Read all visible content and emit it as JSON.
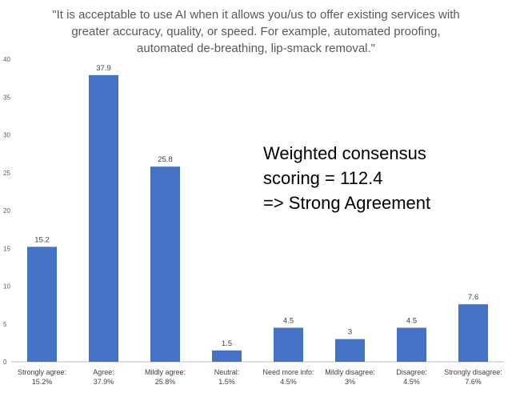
{
  "chart_data": {
    "type": "bar",
    "title_lines": [
      "\"It is acceptable to use AI when it allows you/us to offer existing services with",
      "greater accuracy, quality, or speed. For example, automated proofing,",
      "automated de-breathing, lip-smack removal.\""
    ],
    "categories": [
      [
        "Strongly agree:",
        "15.2%"
      ],
      [
        "Agree:",
        "37.9%"
      ],
      [
        "Mildly agree:",
        "25.8%"
      ],
      [
        "Neutral:",
        "1.5%"
      ],
      [
        "Need more info:",
        "4.5%"
      ],
      [
        "Mildly disagree:",
        "3%"
      ],
      [
        "Disagree:",
        "4.5%"
      ],
      [
        "Strongly disagree:",
        "7.6%"
      ]
    ],
    "values": [
      15.2,
      37.9,
      25.8,
      1.5,
      4.5,
      3,
      4.5,
      7.6
    ],
    "data_labels": [
      "15.2",
      "37.9",
      "25.8",
      "1.5",
      "4.5",
      "3",
      "4.5",
      "7.6"
    ],
    "yticks": [
      "0",
      "5",
      "10",
      "15",
      "20",
      "25",
      "30",
      "35",
      "40"
    ],
    "ylim": [
      0,
      40
    ],
    "grid": false,
    "bar_color": "#4472C4",
    "annotation_lines": [
      "Weighted consensus",
      "scoring = 112.4",
      "=> Strong Agreement"
    ]
  }
}
